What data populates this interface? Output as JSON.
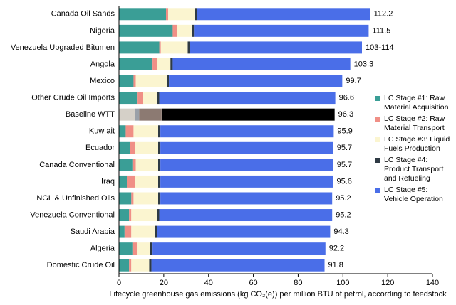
{
  "chart_data": {
    "type": "stacked-barh",
    "x_label": "Lifecycle greenhouse gas emissions (kg CO₂(e)) per million BTU of petrol, according to feedstock",
    "categories": [
      "Canada Oil Sands",
      "Nigeria",
      "Venezuela Upgraded Bitumen",
      "Angola",
      "Mexico",
      "Other Crude Oil Imports",
      "Baseline WTT",
      "Kuw ait",
      "Ecuador",
      "Canada Conventional",
      "Iraq",
      "NGL & Unfinished Oils",
      "Venezuela Conventional",
      "Saudi Arabia",
      "Algeria",
      "Domestic Crude Oil"
    ],
    "series": [
      {
        "name": "LC Stage #1: Raw Material Acquisition",
        "color": "#3a9e96",
        "values": [
          21,
          24,
          18,
          15,
          6.5,
          8,
          7,
          3,
          5,
          6,
          3.5,
          5.5,
          4.5,
          2.5,
          6,
          4.5
        ]
      },
      {
        "name": "LC Stage #2: Raw Material Transport",
        "color": "#f08f86",
        "values": [
          1,
          2,
          0.7,
          2,
          1,
          2.5,
          2,
          3.5,
          2,
          1.5,
          3.5,
          1,
          1,
          3,
          2,
          1
        ]
      },
      {
        "name": "LC Stage #3: Liquid Fuels Production",
        "color": "#fbf5d0",
        "values": [
          12,
          6.5,
          12,
          6,
          14,
          6.5,
          10,
          11,
          10.5,
          10,
          10.5,
          11,
          11.5,
          10.5,
          6,
          8
        ]
      },
      {
        "name": "LC Stage #4: Product Transport and Refueling",
        "color": "#2e3a44",
        "values": [
          1,
          1,
          1,
          1,
          0.8,
          1,
          0.3,
          1,
          1,
          1,
          1,
          1,
          1,
          1,
          1,
          1
        ]
      },
      {
        "name": "LC Stage #5: Vehicle Operation",
        "color": "#4a6ee8",
        "values": [
          77.2,
          78,
          76.8,
          79.3,
          77.4,
          78.6,
          77,
          77.4,
          77.2,
          77.2,
          77.1,
          76.7,
          77.2,
          77.3,
          77.2,
          77.3
        ]
      }
    ],
    "totals": [
      112.2,
      111.5,
      108.5,
      103.3,
      99.7,
      96.6,
      96.3,
      95.9,
      95.7,
      95.7,
      95.6,
      95.2,
      95.2,
      94.3,
      92.2,
      91.8
    ],
    "total_labels": [
      "112.2",
      "111.5",
      "103-114",
      "103.3",
      "99.7",
      "96.6",
      "96.3",
      "95.9",
      "95.7",
      "95.7",
      "95.6",
      "95.2",
      "95.2",
      "94.3",
      "92.2",
      "91.8"
    ],
    "highlight": {
      "category_index": 6,
      "colors": [
        "#d5d0c8",
        "#9aa0a8",
        "#8c7a72",
        "#8c7a72",
        "#000000"
      ]
    },
    "xlim": [
      0,
      140
    ],
    "xticks": [
      0,
      20,
      40,
      60,
      80,
      100,
      120,
      140
    ]
  }
}
